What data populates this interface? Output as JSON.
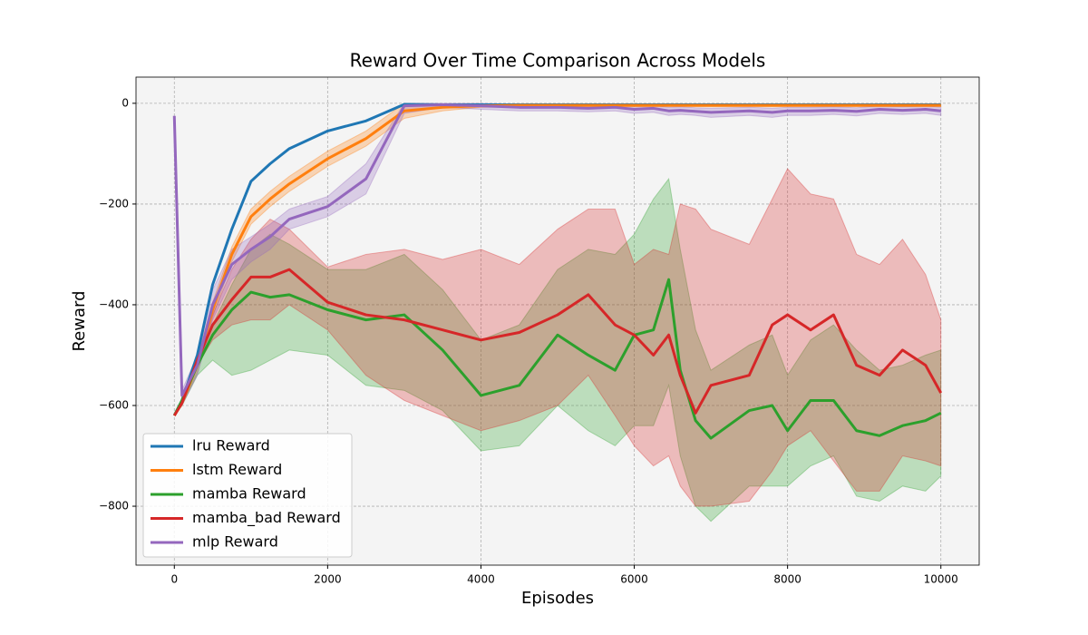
{
  "chart_data": {
    "type": "line",
    "title": "Reward Over Time Comparison Across Models",
    "x_label": "Episodes",
    "y_label": "Reward",
    "xlim": [
      -500,
      10500
    ],
    "ylim": [
      -917,
      52
    ],
    "xticks": [
      0,
      2000,
      4000,
      6000,
      8000,
      10000
    ],
    "yticks": [
      {
        "value": -800,
        "label": "−800"
      },
      {
        "value": -600,
        "label": "−600"
      },
      {
        "value": -400,
        "label": "−400"
      },
      {
        "value": -200,
        "label": "−200"
      },
      0
    ],
    "grid": true,
    "legend": "lower left",
    "x": [
      0,
      100,
      300,
      500,
      750,
      1000,
      1250,
      1500,
      2000,
      2500,
      3000,
      3500,
      4000,
      4500,
      5000,
      5400,
      5750,
      6000,
      6250,
      6450,
      6600,
      6800,
      7000,
      7500,
      7800,
      8000,
      8300,
      8600,
      8900,
      9200,
      9500,
      9800,
      10000
    ],
    "series": [
      {
        "name": "lru Reward",
        "color": "#1f77b4",
        "values": [
          -620,
          -590,
          -500,
          -360,
          -250,
          -155,
          -120,
          -90,
          -55,
          -35,
          -2,
          -3,
          -3,
          -3,
          -3,
          -3,
          -3,
          -3,
          -3,
          -3,
          -3,
          -3,
          -3,
          -3,
          -3,
          -3,
          -3,
          -3,
          -3,
          -3,
          -3,
          -3,
          -3
        ]
      },
      {
        "name": "lstm Reward",
        "color": "#ff7f0e",
        "values": [
          -620,
          -595,
          -520,
          -410,
          -300,
          -225,
          -190,
          -160,
          -110,
          -70,
          -15,
          -8,
          -5,
          -4,
          -4,
          -4,
          -4,
          -4,
          -4,
          -4,
          -4,
          -4,
          -4,
          -4,
          -4,
          -4,
          -4,
          -4,
          -4,
          -4,
          -4,
          -4,
          -4
        ],
        "upper": [
          -620,
          -590,
          -505,
          -395,
          -285,
          -210,
          -175,
          -145,
          -95,
          -55,
          0,
          -2,
          -2,
          -1,
          -1,
          -1,
          -1,
          -1,
          -1,
          -1,
          -1,
          -1,
          -1,
          -1,
          -1,
          -1,
          -1,
          -1,
          -1,
          -1,
          -1,
          -1,
          -1
        ],
        "lower": [
          -620,
          -600,
          -535,
          -425,
          -315,
          -240,
          -205,
          -175,
          -125,
          -85,
          -30,
          -15,
          -8,
          -7,
          -7,
          -7,
          -7,
          -7,
          -7,
          -7,
          -7,
          -7,
          -7,
          -7,
          -7,
          -7,
          -7,
          -7,
          -7,
          -7,
          -7,
          -7,
          -7
        ]
      },
      {
        "name": "mamba Reward",
        "color": "#2ca02c",
        "values": [
          -620,
          -590,
          -520,
          -460,
          -410,
          -375,
          -385,
          -380,
          -410,
          -430,
          -420,
          -490,
          -580,
          -560,
          -460,
          -500,
          -530,
          -460,
          -450,
          -350,
          -530,
          -630,
          -665,
          -610,
          -600,
          -650,
          -590,
          -590,
          -650,
          -660,
          -640,
          -630,
          -615
        ],
        "upper": [
          -620,
          -585,
          -500,
          -440,
          -360,
          -290,
          -260,
          -280,
          -330,
          -330,
          -300,
          -370,
          -470,
          -440,
          -330,
          -290,
          -300,
          -260,
          -190,
          -150,
          -290,
          -450,
          -530,
          -480,
          -460,
          -540,
          -470,
          -440,
          -490,
          -530,
          -520,
          -500,
          -490
        ],
        "lower": [
          -620,
          -600,
          -540,
          -510,
          -540,
          -530,
          -510,
          -490,
          -500,
          -560,
          -570,
          -610,
          -690,
          -680,
          -600,
          -650,
          -680,
          -640,
          -640,
          -560,
          -700,
          -800,
          -830,
          -760,
          -760,
          -760,
          -720,
          -700,
          -780,
          -790,
          -760,
          -770,
          -740
        ]
      },
      {
        "name": "mamba_bad Reward",
        "color": "#d62728",
        "values": [
          -620,
          -595,
          -510,
          -440,
          -390,
          -345,
          -345,
          -330,
          -395,
          -420,
          -430,
          -450,
          -470,
          -455,
          -420,
          -380,
          -440,
          -460,
          -500,
          -460,
          -540,
          -615,
          -560,
          -540,
          -440,
          -420,
          -450,
          -420,
          -520,
          -540,
          -490,
          -520,
          -575
        ],
        "upper": [
          -620,
          -590,
          -500,
          -420,
          -330,
          -270,
          -230,
          -250,
          -325,
          -300,
          -290,
          -310,
          -290,
          -320,
          -250,
          -210,
          -210,
          -320,
          -290,
          -300,
          -200,
          -210,
          -250,
          -280,
          -190,
          -130,
          -180,
          -190,
          -300,
          -320,
          -270,
          -340,
          -430
        ],
        "lower": [
          -620,
          -600,
          -520,
          -470,
          -440,
          -430,
          -430,
          -400,
          -450,
          -540,
          -590,
          -620,
          -650,
          -630,
          -600,
          -540,
          -620,
          -680,
          -720,
          -700,
          -760,
          -800,
          -800,
          -790,
          -730,
          -680,
          -650,
          -710,
          -770,
          -770,
          -700,
          -710,
          -720
        ]
      },
      {
        "name": "mlp Reward",
        "color": "#9467bd",
        "values": [
          -25,
          -580,
          -520,
          -400,
          -320,
          -290,
          -265,
          -230,
          -205,
          -150,
          -5,
          -3,
          -5,
          -8,
          -8,
          -10,
          -8,
          -12,
          -10,
          -15,
          -14,
          -16,
          -18,
          -15,
          -18,
          -15,
          -15,
          -14,
          -16,
          -12,
          -14,
          -12,
          -15
        ],
        "upper": [
          -25,
          -570,
          -500,
          -370,
          -290,
          -265,
          -240,
          -210,
          -185,
          -120,
          0,
          0,
          0,
          -2,
          -2,
          -4,
          -2,
          -5,
          -4,
          -8,
          -7,
          -9,
          -10,
          -8,
          -10,
          -8,
          -8,
          -7,
          -9,
          -5,
          -7,
          -5,
          -8
        ],
        "lower": [
          -25,
          -600,
          -540,
          -430,
          -350,
          -315,
          -290,
          -250,
          -225,
          -180,
          -20,
          -8,
          -12,
          -15,
          -15,
          -17,
          -15,
          -20,
          -18,
          -24,
          -22,
          -24,
          -28,
          -24,
          -28,
          -24,
          -24,
          -22,
          -25,
          -20,
          -22,
          -20,
          -24
        ]
      }
    ]
  }
}
